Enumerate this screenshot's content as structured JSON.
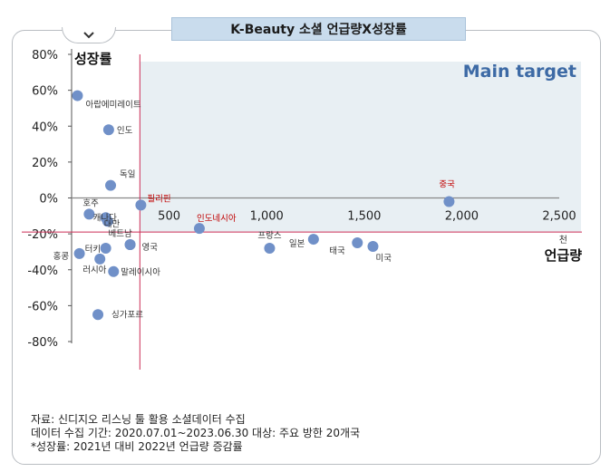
{
  "header": {
    "title": "K-Beauty 소셜 언급량X성장률"
  },
  "chart_data": {
    "type": "scatter",
    "title": "K-Beauty 소셜 언급량X성장률",
    "xlabel": "언급량",
    "xunit": "천",
    "ylabel": "성장률",
    "xlim": [
      0,
      2500
    ],
    "ylim": [
      -80,
      80
    ],
    "xticks": [
      "500",
      "1,000",
      "1,500",
      "2,000",
      "2,500"
    ],
    "yticks": [
      "80%",
      "60%",
      "40%",
      "20%",
      "0%",
      "-20%",
      "-40%",
      "-60%",
      "-80%"
    ],
    "grid": false,
    "highlight_label": "Main target",
    "highlight_region": {
      "x": [
        350,
        2500
      ],
      "y": [
        -19,
        80
      ]
    },
    "reference_lines": {
      "x": 350,
      "y": -19
    },
    "colors": {
      "points": "#7090c8",
      "highlight_fill": "#e8eff3",
      "highlight_text": "#3d6aa5",
      "reference_line": "#cc2d56",
      "red_label": "#c00000"
    },
    "points": [
      {
        "label": "아랍에미레이트",
        "x": 30,
        "y": 57
      },
      {
        "label": "인도",
        "x": 190,
        "y": 38
      },
      {
        "label": "독일",
        "x": 200,
        "y": 7
      },
      {
        "label": "호주",
        "x": 90,
        "y": -9
      },
      {
        "label": "캐나다",
        "x": 175,
        "y": -11
      },
      {
        "label": "필리핀",
        "x": 355,
        "y": -4
      },
      {
        "label": "대만",
        "x": 185,
        "y": -13
      },
      {
        "label": "인도네시아",
        "x": 655,
        "y": -17
      },
      {
        "label": "베트남",
        "x": 300,
        "y": -26
      },
      {
        "label": "영국",
        "x": 300,
        "y": -26
      },
      {
        "label": "터키",
        "x": 175,
        "y": -28
      },
      {
        "label": "홍콩",
        "x": 40,
        "y": -31
      },
      {
        "label": "러시아",
        "x": 145,
        "y": -34
      },
      {
        "label": "말레이시아",
        "x": 215,
        "y": -41
      },
      {
        "label": "싱가포르",
        "x": 135,
        "y": -65
      },
      {
        "label": "프랑스",
        "x": 1015,
        "y": -28
      },
      {
        "label": "일본",
        "x": 1240,
        "y": -23
      },
      {
        "label": "태국",
        "x": 1465,
        "y": -25
      },
      {
        "label": "미국",
        "x": 1545,
        "y": -27
      },
      {
        "label": "중국",
        "x": 1935,
        "y": -2
      }
    ]
  },
  "notes": [
    "자료: 신디지오 리스닝 툴 활용 소셜데이터 수집",
    "데이터 수집 기간: 2020.07.01~2023.06.30  대상: 주요 방한 20개국",
    "*성장률: 2021년 대비 2022년 언급량 증감률"
  ]
}
